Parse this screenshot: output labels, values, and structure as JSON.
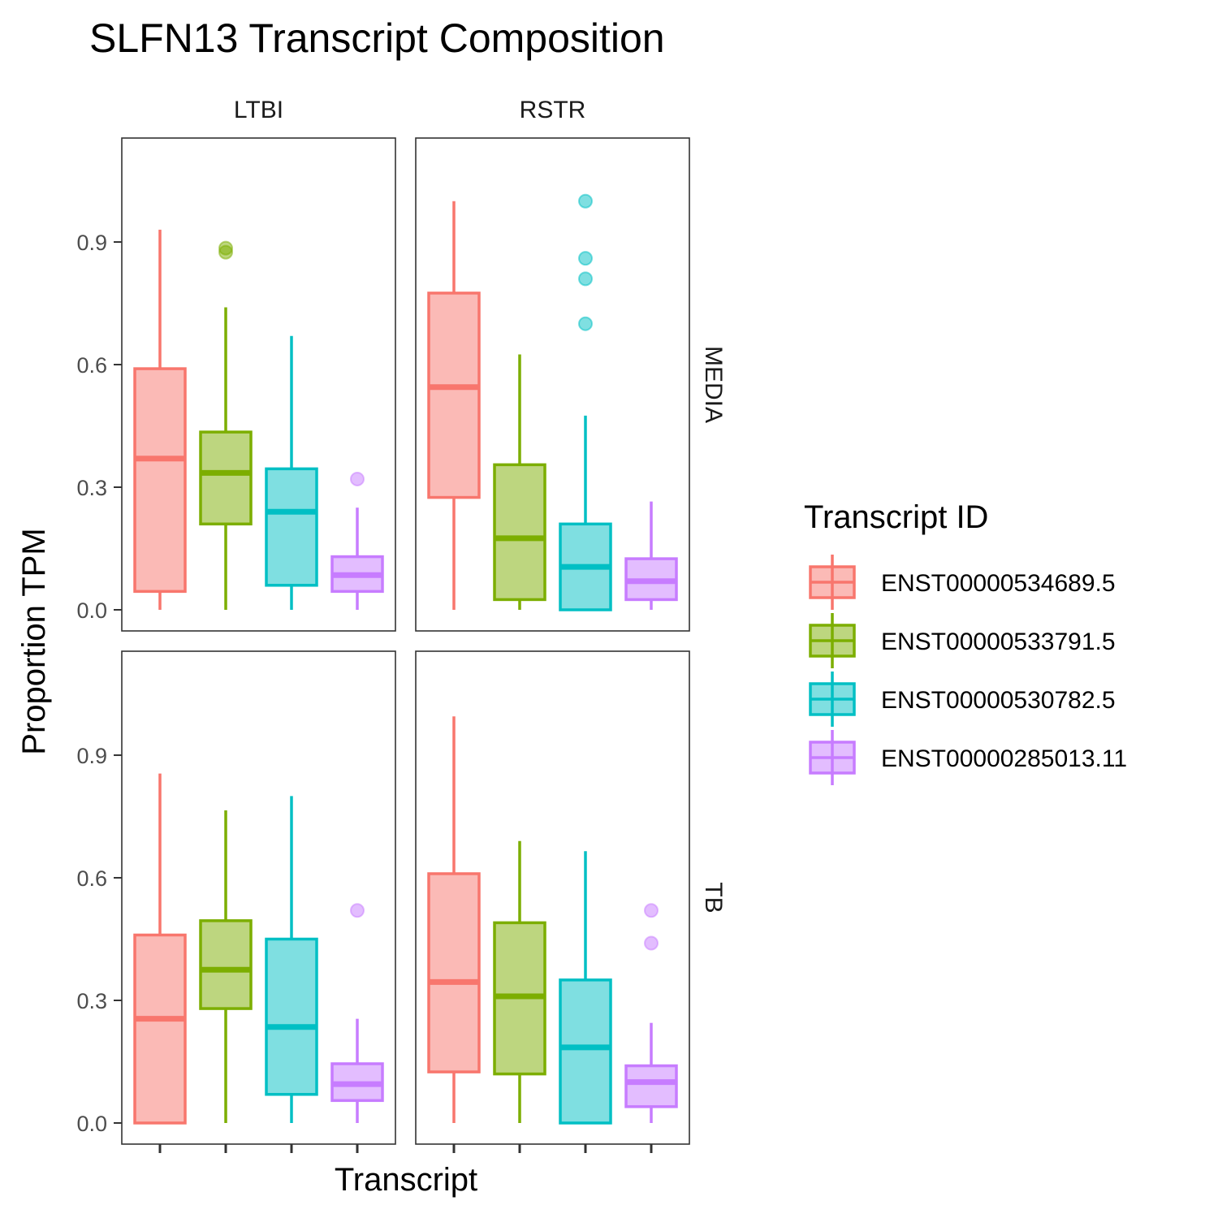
{
  "chart_data": {
    "type": "boxplot",
    "title": "SLFN13 Transcript Composition",
    "xlabel": "Transcript",
    "ylabel": "Proportion TPM",
    "ylim": [
      -0.05,
      1.15
    ],
    "yticks": [
      "0.0",
      "0.3",
      "0.6",
      "0.9"
    ],
    "ytick_values": [
      0.0,
      0.3,
      0.6,
      0.9
    ],
    "grid": false,
    "facet_columns": [
      "LTBI",
      "RSTR"
    ],
    "facet_rows": [
      "MEDIA",
      "TB"
    ],
    "legend": {
      "title": "Transcript ID",
      "position": "right",
      "entries": [
        {
          "label": "ENST00000534689.5",
          "color": "#F8766D"
        },
        {
          "label": "ENST00000533791.5",
          "color": "#7CAE00"
        },
        {
          "label": "ENST00000530782.5",
          "color": "#00BFC4"
        },
        {
          "label": "ENST00000285013.11",
          "color": "#C77CFF"
        }
      ]
    },
    "panels": [
      {
        "column": "LTBI",
        "row": "MEDIA",
        "boxes": [
          {
            "lower_whisker": 0.0,
            "q1": 0.045,
            "median": 0.37,
            "q3": 0.59,
            "upper_whisker": 0.93,
            "outliers": []
          },
          {
            "lower_whisker": 0.0,
            "q1": 0.21,
            "median": 0.335,
            "q3": 0.435,
            "upper_whisker": 0.74,
            "outliers": [
              0.875,
              0.885
            ]
          },
          {
            "lower_whisker": 0.0,
            "q1": 0.06,
            "median": 0.24,
            "q3": 0.345,
            "upper_whisker": 0.67,
            "outliers": []
          },
          {
            "lower_whisker": 0.0,
            "q1": 0.045,
            "median": 0.085,
            "q3": 0.13,
            "upper_whisker": 0.25,
            "outliers": [
              0.32
            ]
          }
        ]
      },
      {
        "column": "RSTR",
        "row": "MEDIA",
        "boxes": [
          {
            "lower_whisker": 0.0,
            "q1": 0.275,
            "median": 0.545,
            "q3": 0.775,
            "upper_whisker": 1.0,
            "outliers": []
          },
          {
            "lower_whisker": 0.0,
            "q1": 0.025,
            "median": 0.175,
            "q3": 0.355,
            "upper_whisker": 0.625,
            "outliers": []
          },
          {
            "lower_whisker": 0.0,
            "q1": 0.0,
            "median": 0.105,
            "q3": 0.21,
            "upper_whisker": 0.475,
            "outliers": [
              0.7,
              0.81,
              0.86,
              1.0
            ]
          },
          {
            "lower_whisker": 0.0,
            "q1": 0.025,
            "median": 0.07,
            "q3": 0.125,
            "upper_whisker": 0.265,
            "outliers": []
          }
        ]
      },
      {
        "column": "LTBI",
        "row": "TB",
        "boxes": [
          {
            "lower_whisker": 0.0,
            "q1": 0.0,
            "median": 0.255,
            "q3": 0.46,
            "upper_whisker": 0.855,
            "outliers": []
          },
          {
            "lower_whisker": 0.0,
            "q1": 0.28,
            "median": 0.375,
            "q3": 0.495,
            "upper_whisker": 0.765,
            "outliers": []
          },
          {
            "lower_whisker": 0.0,
            "q1": 0.07,
            "median": 0.235,
            "q3": 0.45,
            "upper_whisker": 0.8,
            "outliers": []
          },
          {
            "lower_whisker": 0.0,
            "q1": 0.055,
            "median": 0.095,
            "q3": 0.145,
            "upper_whisker": 0.255,
            "outliers": [
              0.52
            ]
          }
        ]
      },
      {
        "column": "RSTR",
        "row": "TB",
        "boxes": [
          {
            "lower_whisker": 0.0,
            "q1": 0.125,
            "median": 0.345,
            "q3": 0.61,
            "upper_whisker": 0.995,
            "outliers": []
          },
          {
            "lower_whisker": 0.0,
            "q1": 0.12,
            "median": 0.31,
            "q3": 0.49,
            "upper_whisker": 0.69,
            "outliers": []
          },
          {
            "lower_whisker": 0.0,
            "q1": 0.0,
            "median": 0.185,
            "q3": 0.35,
            "upper_whisker": 0.665,
            "outliers": []
          },
          {
            "lower_whisker": 0.0,
            "q1": 0.04,
            "median": 0.1,
            "q3": 0.14,
            "upper_whisker": 0.245,
            "outliers": [
              0.44,
              0.52
            ]
          }
        ]
      }
    ]
  }
}
